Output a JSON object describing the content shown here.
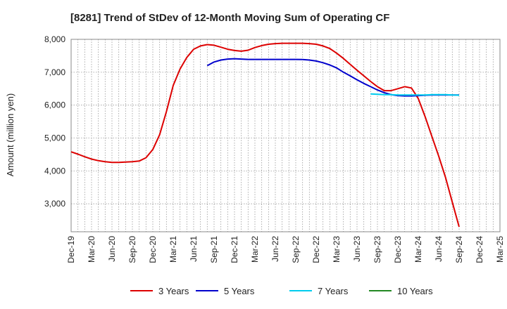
{
  "chart_data": {
    "type": "line",
    "title": "[8281]  Trend of StDev of 12-Month Moving Sum of Operating CF",
    "xlabel": "",
    "ylabel": "Amount (million yen)",
    "ylim": [
      2150,
      8000
    ],
    "yticks": [
      3000,
      4000,
      5000,
      6000,
      7000,
      8000
    ],
    "ytick_labels": [
      "3,000",
      "4,000",
      "5,000",
      "6,000",
      "7,000",
      "8,000"
    ],
    "xlim": [
      "Dec-19",
      "Mar-25"
    ],
    "xtick_labels": [
      "Dec-19",
      "Mar-20",
      "Jun-20",
      "Sep-20",
      "Dec-20",
      "Mar-21",
      "Jun-21",
      "Sep-21",
      "Dec-21",
      "Mar-22",
      "Jun-22",
      "Sep-22",
      "Dec-22",
      "Mar-23",
      "Jun-23",
      "Sep-23",
      "Dec-23",
      "Mar-24",
      "Jun-24",
      "Sep-24",
      "Dec-24",
      "Mar-25"
    ],
    "grid": true,
    "legend_position": "bottom",
    "series": [
      {
        "name": "3 Years",
        "color": "#dd0000",
        "x": [
          "Dec-19",
          "Jan-20",
          "Feb-20",
          "Mar-20",
          "Apr-20",
          "May-20",
          "Jun-20",
          "Jul-20",
          "Aug-20",
          "Sep-20",
          "Oct-20",
          "Nov-20",
          "Dec-20",
          "Jan-21",
          "Feb-21",
          "Mar-21",
          "Apr-21",
          "May-21",
          "Jun-21",
          "Jul-21",
          "Aug-21",
          "Sep-21",
          "Oct-21",
          "Nov-21",
          "Dec-21",
          "Jan-22",
          "Feb-22",
          "Mar-22",
          "Apr-22",
          "May-22",
          "Jun-22",
          "Jul-22",
          "Aug-22",
          "Sep-22",
          "Oct-22",
          "Nov-22",
          "Dec-22",
          "Jan-23",
          "Feb-23",
          "Mar-23",
          "Apr-23",
          "May-23",
          "Jun-23",
          "Jul-23",
          "Aug-23",
          "Sep-23",
          "Oct-23",
          "Nov-23",
          "Dec-23",
          "Jan-24",
          "Feb-24",
          "Mar-24",
          "Apr-24",
          "May-24",
          "Jun-24",
          "Jul-24",
          "Aug-24",
          "Sep-24"
        ],
        "values": [
          4580,
          4510,
          4430,
          4360,
          4310,
          4280,
          4260,
          4260,
          4270,
          4280,
          4300,
          4400,
          4650,
          5100,
          5800,
          6600,
          7100,
          7450,
          7700,
          7800,
          7840,
          7820,
          7760,
          7700,
          7660,
          7640,
          7670,
          7750,
          7810,
          7850,
          7870,
          7880,
          7880,
          7880,
          7880,
          7870,
          7850,
          7800,
          7720,
          7580,
          7420,
          7240,
          7060,
          6890,
          6720,
          6560,
          6440,
          6440,
          6500,
          6560,
          6520,
          6200,
          5650,
          5050,
          4450,
          3800,
          3050,
          2300
        ]
      },
      {
        "name": "5 Years",
        "color": "#0000cc",
        "x": [
          "Aug-21",
          "Sep-21",
          "Oct-21",
          "Nov-21",
          "Dec-21",
          "Jan-22",
          "Feb-22",
          "Mar-22",
          "Apr-22",
          "May-22",
          "Jun-22",
          "Jul-22",
          "Aug-22",
          "Sep-22",
          "Oct-22",
          "Nov-22",
          "Dec-22",
          "Jan-23",
          "Feb-23",
          "Mar-23",
          "Apr-23",
          "May-23",
          "Jun-23",
          "Jul-23",
          "Aug-23",
          "Sep-23",
          "Oct-23",
          "Nov-23",
          "Dec-23",
          "Jan-24",
          "Feb-24",
          "Mar-24",
          "Apr-24",
          "May-24",
          "Jun-24",
          "Jul-24",
          "Aug-24",
          "Sep-24"
        ],
        "values": [
          7200,
          7310,
          7370,
          7400,
          7410,
          7400,
          7390,
          7390,
          7390,
          7390,
          7390,
          7390,
          7390,
          7390,
          7385,
          7370,
          7340,
          7290,
          7220,
          7130,
          7000,
          6890,
          6770,
          6660,
          6560,
          6460,
          6380,
          6320,
          6290,
          6280,
          6280,
          6290,
          6300,
          6310,
          6310,
          6310,
          6310,
          6310
        ]
      },
      {
        "name": "7 Years",
        "color": "#00ccee",
        "x": [
          "Aug-23",
          "Sep-23",
          "Oct-23",
          "Nov-23",
          "Dec-23",
          "Jan-24",
          "Feb-24",
          "Mar-24",
          "Apr-24",
          "May-24",
          "Jun-24",
          "Jul-24",
          "Aug-24",
          "Sep-24"
        ],
        "values": [
          6340,
          6330,
          6320,
          6320,
          6310,
          6310,
          6310,
          6310,
          6310,
          6320,
          6320,
          6320,
          6310,
          6300
        ]
      },
      {
        "name": "10 Years",
        "color": "#228822",
        "x": [],
        "values": []
      }
    ]
  }
}
